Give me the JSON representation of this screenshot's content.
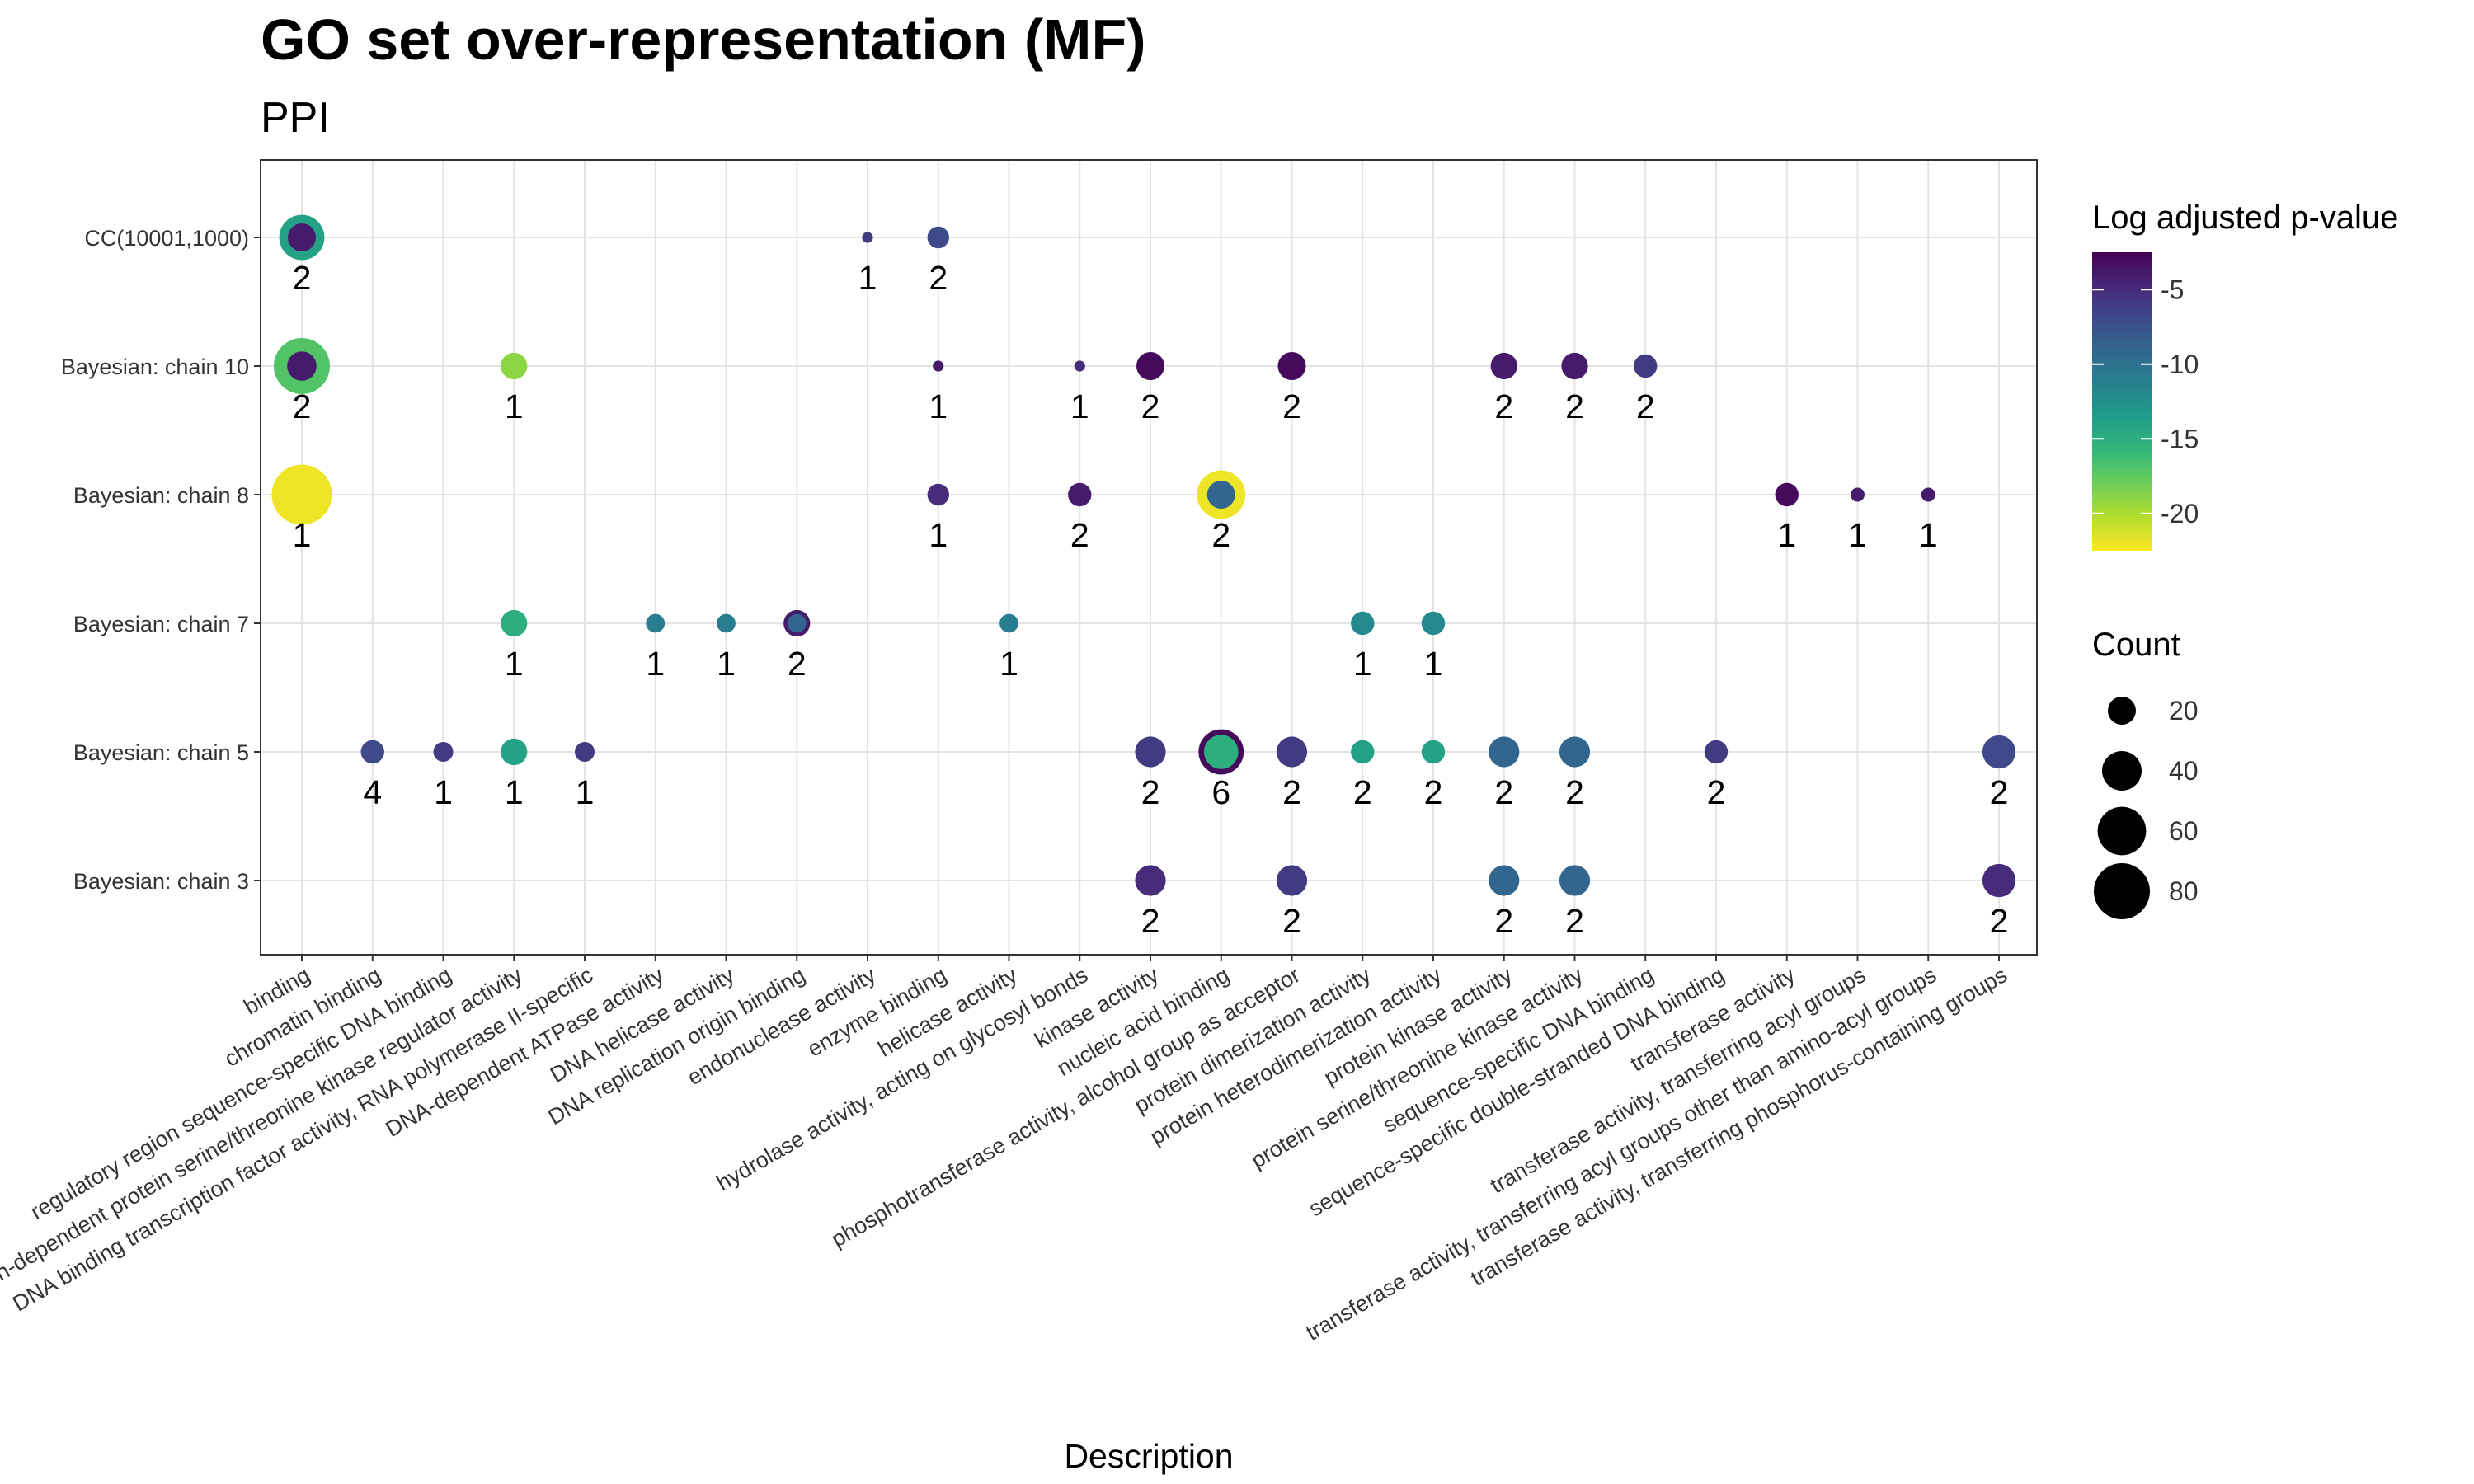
{
  "chart_data": {
    "type": "scatter",
    "title": "GO set over-representation (MF)",
    "subtitle": "PPI",
    "xlabel": "Description",
    "ylabel": "",
    "categories": [
      "binding",
      "chromatin binding",
      "regulatory region sequence-specific DNA binding",
      "cyclin-dependent protein serine/threonine kinase regulator activity",
      "DNA binding transcription factor activity, RNA polymerase II-specific",
      "DNA-dependent ATPase activity",
      "DNA helicase activity",
      "DNA replication origin binding",
      "endonuclease activity",
      "enzyme binding",
      "helicase activity",
      "hydrolase activity, acting on glycosyl bonds",
      "kinase activity",
      "nucleic acid binding",
      "phosphotransferase activity, alcohol group as acceptor",
      "protein dimerization activity",
      "protein heterodimerization activity",
      "protein kinase activity",
      "protein serine/threonine kinase activity",
      "sequence-specific DNA binding",
      "sequence-specific double-stranded DNA binding",
      "transferase activity",
      "transferase activity, transferring acyl groups",
      "transferase activity, transferring acyl groups other than amino-acyl groups",
      "transferase activity, transferring phosphorus-containing groups"
    ],
    "rows": [
      "CC(10001,1000)",
      "Bayesian: chain 10",
      "Bayesian: chain 8",
      "Bayesian: chain 7",
      "Bayesian: chain 5",
      "Bayesian: chain 3"
    ],
    "color_scale": {
      "title": "Log adjusted p-value",
      "range": [
        -22.5,
        -2.5
      ],
      "ticks": [
        -5,
        -10,
        -15,
        -20
      ],
      "colors": [
        "#fde725",
        "#b5de2b",
        "#6ece58",
        "#35b779",
        "#1f9e89",
        "#26828e",
        "#31688e",
        "#3e4989",
        "#482878",
        "#440154"
      ]
    },
    "size_scale": {
      "title": "Count",
      "ticks": [
        20,
        40,
        60,
        80
      ]
    },
    "points": [
      {
        "x": "binding",
        "y": "CC(10001,1000)",
        "count": 52,
        "logp": -14,
        "label": "2"
      },
      {
        "x": "binding",
        "y": "CC(10001,1000)",
        "count": 20,
        "logp": -4,
        "label": ""
      },
      {
        "x": "endonuclease activity",
        "y": "CC(10001,1000)",
        "count": 3,
        "logp": -6,
        "label": "1"
      },
      {
        "x": "enzyme binding",
        "y": "CC(10001,1000)",
        "count": 12,
        "logp": -7,
        "label": "2"
      },
      {
        "x": "binding",
        "y": "Bayesian: chain 10",
        "count": 80,
        "logp": -17,
        "label": "2"
      },
      {
        "x": "binding",
        "y": "Bayesian: chain 10",
        "count": 22,
        "logp": -4,
        "label": ""
      },
      {
        "x": "cyclin-dependent protein serine/threonine kinase regulator activity",
        "y": "Bayesian: chain 10",
        "count": 18,
        "logp": -19,
        "label": "1"
      },
      {
        "x": "enzyme binding",
        "y": "Bayesian: chain 10",
        "count": 3,
        "logp": -4,
        "label": "1"
      },
      {
        "x": "hydrolase activity, acting on glycosyl bonds",
        "y": "Bayesian: chain 10",
        "count": 3,
        "logp": -5,
        "label": "1"
      },
      {
        "x": "kinase activity",
        "y": "Bayesian: chain 10",
        "count": 20,
        "logp": -3,
        "label": "2"
      },
      {
        "x": "phosphotransferase activity, alcohol group as acceptor",
        "y": "Bayesian: chain 10",
        "count": 20,
        "logp": -3,
        "label": "2"
      },
      {
        "x": "protein kinase activity",
        "y": "Bayesian: chain 10",
        "count": 18,
        "logp": -4,
        "label": "2"
      },
      {
        "x": "protein serine/threonine kinase activity",
        "y": "Bayesian: chain 10",
        "count": 18,
        "logp": -4,
        "label": "2"
      },
      {
        "x": "sequence-specific DNA binding",
        "y": "Bayesian: chain 10",
        "count": 14,
        "logp": -6,
        "label": "2"
      },
      {
        "x": "binding",
        "y": "Bayesian: chain 8",
        "count": 92,
        "logp": -22,
        "label": "1"
      },
      {
        "x": "enzyme binding",
        "y": "Bayesian: chain 8",
        "count": 12,
        "logp": -5,
        "label": "1"
      },
      {
        "x": "hydrolase activity, acting on glycosyl bonds",
        "y": "Bayesian: chain 8",
        "count": 14,
        "logp": -4,
        "label": "2"
      },
      {
        "x": "nucleic acid binding",
        "y": "Bayesian: chain 8",
        "count": 60,
        "logp": -22,
        "label": "2"
      },
      {
        "x": "nucleic acid binding",
        "y": "Bayesian: chain 8",
        "count": 20,
        "logp": -9,
        "label": ""
      },
      {
        "x": "transferase activity",
        "y": "Bayesian: chain 8",
        "count": 14,
        "logp": -3,
        "label": "1"
      },
      {
        "x": "transferase activity, transferring acyl groups",
        "y": "Bayesian: chain 8",
        "count": 5,
        "logp": -4,
        "label": "1"
      },
      {
        "x": "transferase activity, transferring acyl groups other than amino-acyl groups",
        "y": "Bayesian: chain 8",
        "count": 5,
        "logp": -4,
        "label": "1"
      },
      {
        "x": "cyclin-dependent protein serine/threonine kinase regulator activity",
        "y": "Bayesian: chain 7",
        "count": 18,
        "logp": -15,
        "label": "1"
      },
      {
        "x": "DNA-dependent ATPase activity",
        "y": "Bayesian: chain 7",
        "count": 9,
        "logp": -11,
        "label": "1"
      },
      {
        "x": "DNA helicase activity",
        "y": "Bayesian: chain 7",
        "count": 9,
        "logp": -11,
        "label": "1"
      },
      {
        "x": "DNA replication origin binding",
        "y": "Bayesian: chain 7",
        "count": 18,
        "logp": -4,
        "label": "2"
      },
      {
        "x": "DNA replication origin binding",
        "y": "Bayesian: chain 7",
        "count": 9,
        "logp": -9,
        "label": ""
      },
      {
        "x": "helicase activity",
        "y": "Bayesian: chain 7",
        "count": 9,
        "logp": -11,
        "label": "1"
      },
      {
        "x": "protein dimerization activity",
        "y": "Bayesian: chain 7",
        "count": 14,
        "logp": -12,
        "label": "1"
      },
      {
        "x": "protein heterodimerization activity",
        "y": "Bayesian: chain 7",
        "count": 14,
        "logp": -12,
        "label": "1"
      },
      {
        "x": "chromatin binding",
        "y": "Bayesian: chain 5",
        "count": 14,
        "logp": -7,
        "label": "4"
      },
      {
        "x": "regulatory region sequence-specific DNA binding",
        "y": "Bayesian: chain 5",
        "count": 10,
        "logp": -6,
        "label": "1"
      },
      {
        "x": "cyclin-dependent protein serine/threonine kinase regulator activity",
        "y": "Bayesian: chain 5",
        "count": 18,
        "logp": -14,
        "label": "1"
      },
      {
        "x": "DNA binding transcription factor activity, RNA polymerase II-specific",
        "y": "Bayesian: chain 5",
        "count": 10,
        "logp": -6,
        "label": "1"
      },
      {
        "x": "kinase activity",
        "y": "Bayesian: chain 5",
        "count": 24,
        "logp": -6,
        "label": "2"
      },
      {
        "x": "nucleic acid binding",
        "y": "Bayesian: chain 5",
        "count": 52,
        "logp": -3,
        "label": "6"
      },
      {
        "x": "nucleic acid binding",
        "y": "Bayesian: chain 5",
        "count": 30,
        "logp": -15,
        "label": ""
      },
      {
        "x": "phosphotransferase activity, alcohol group as acceptor",
        "y": "Bayesian: chain 5",
        "count": 24,
        "logp": -6,
        "label": "2"
      },
      {
        "x": "protein dimerization activity",
        "y": "Bayesian: chain 5",
        "count": 14,
        "logp": -14,
        "label": "2"
      },
      {
        "x": "protein heterodimerization activity",
        "y": "Bayesian: chain 5",
        "count": 14,
        "logp": -14,
        "label": "2"
      },
      {
        "x": "protein kinase activity",
        "y": "Bayesian: chain 5",
        "count": 24,
        "logp": -9,
        "label": "2"
      },
      {
        "x": "protein serine/threonine kinase activity",
        "y": "Bayesian: chain 5",
        "count": 24,
        "logp": -9,
        "label": "2"
      },
      {
        "x": "sequence-specific double-stranded DNA binding",
        "y": "Bayesian: chain 5",
        "count": 14,
        "logp": -6,
        "label": "2"
      },
      {
        "x": "transferase activity, transferring phosphorus-containing groups",
        "y": "Bayesian: chain 5",
        "count": 28,
        "logp": -7,
        "label": "2"
      },
      {
        "x": "kinase activity",
        "y": "Bayesian: chain 3",
        "count": 24,
        "logp": -5,
        "label": "2"
      },
      {
        "x": "phosphotransferase activity, alcohol group as acceptor",
        "y": "Bayesian: chain 3",
        "count": 24,
        "logp": -6,
        "label": "2"
      },
      {
        "x": "protein kinase activity",
        "y": "Bayesian: chain 3",
        "count": 24,
        "logp": -9,
        "label": "2"
      },
      {
        "x": "protein serine/threonine kinase activity",
        "y": "Bayesian: chain 3",
        "count": 24,
        "logp": -9,
        "label": "2"
      },
      {
        "x": "transferase activity, transferring phosphorus-containing groups",
        "y": "Bayesian: chain 3",
        "count": 28,
        "logp": -5,
        "label": "2"
      }
    ]
  }
}
